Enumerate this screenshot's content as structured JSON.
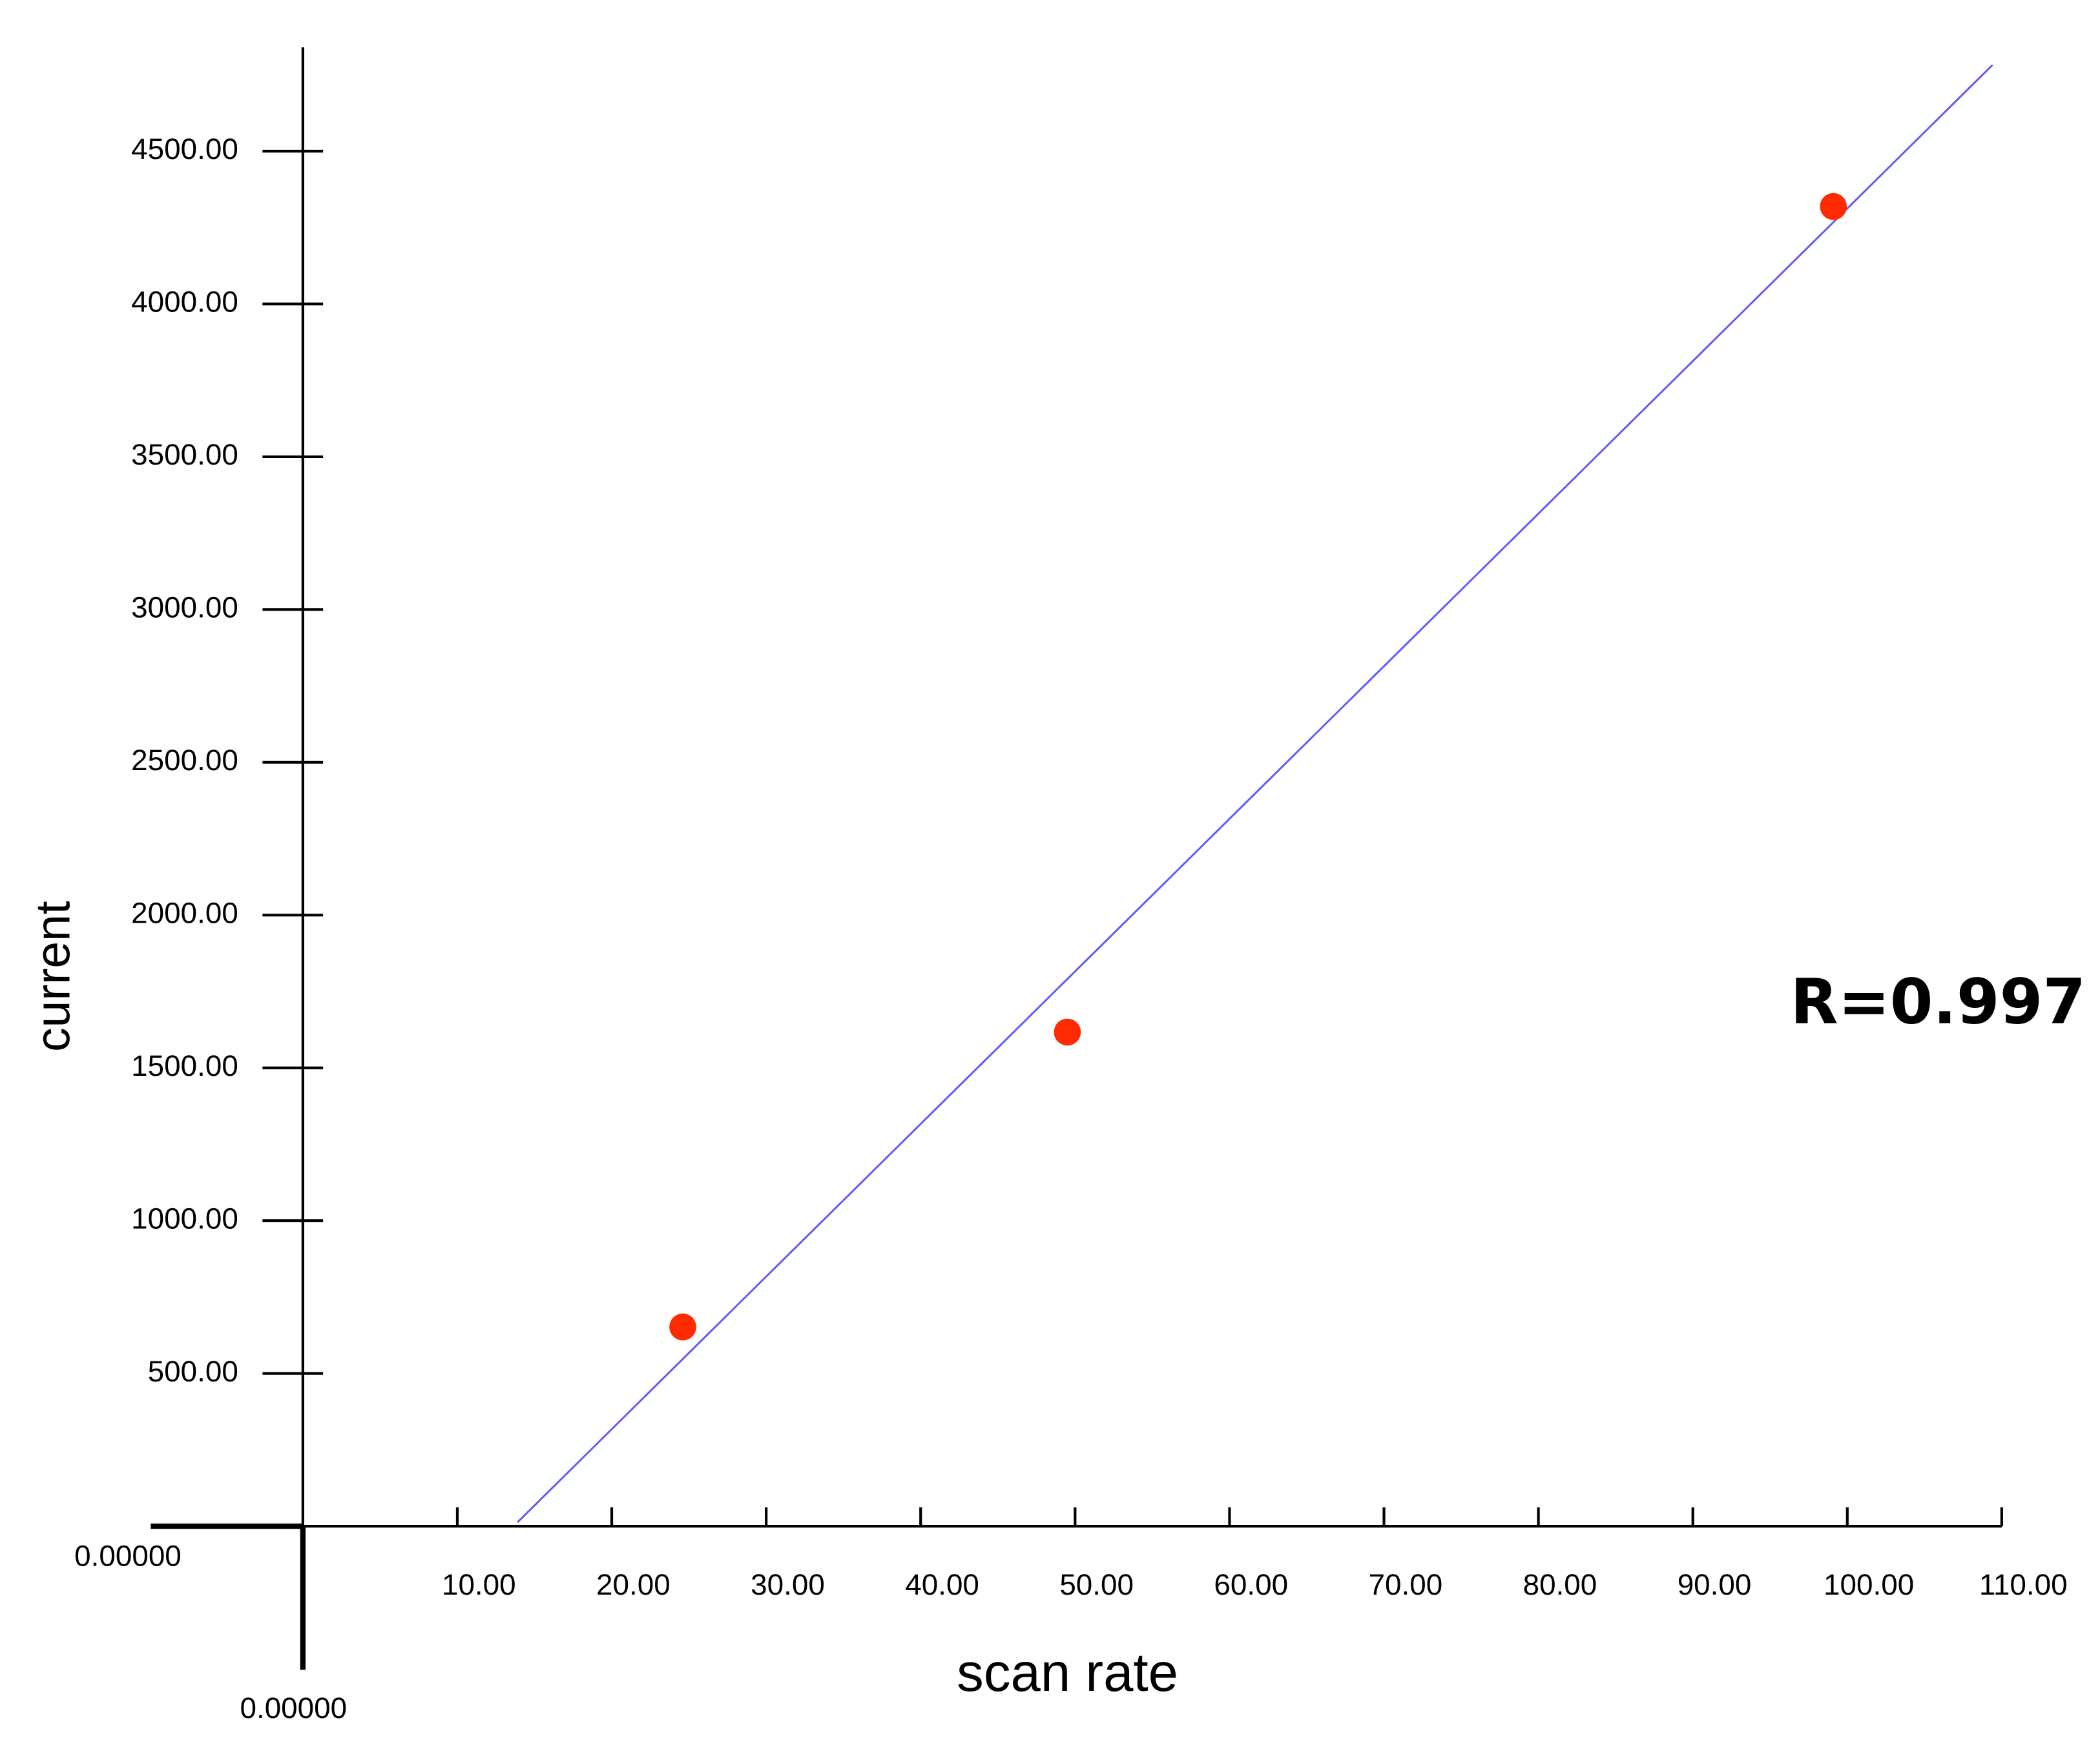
{
  "chart_data": {
    "type": "scatter",
    "x_label": "scan rate",
    "y_label": "current",
    "annotation": "R=0.997",
    "x_origin_label": "0.00000",
    "y_origin_label": "0.00000",
    "x": [
      24.6,
      49.5,
      99.1
    ],
    "values": [
      652,
      1617,
      4319
    ],
    "color": "#ff2a00",
    "fit_line": {
      "x": [
        13.9,
        109.4
      ],
      "y": [
        13,
        4782
      ],
      "color": "#5a5aff"
    },
    "xlim": [
      -9.5,
      110
    ],
    "ylim": [
      -470,
      4840
    ],
    "xticks": [
      {
        "value": 10,
        "label": "10.00"
      },
      {
        "value": 20,
        "label": "20.00"
      },
      {
        "value": 30,
        "label": "30.00"
      },
      {
        "value": 40,
        "label": "40.00"
      },
      {
        "value": 50,
        "label": "50.00"
      },
      {
        "value": 60,
        "label": "60.00"
      },
      {
        "value": 70,
        "label": "70.00"
      },
      {
        "value": 80,
        "label": "80.00"
      },
      {
        "value": 90,
        "label": "90.00"
      },
      {
        "value": 100,
        "label": "100.00"
      },
      {
        "value": 110,
        "label": "110.00"
      }
    ],
    "yticks": [
      {
        "value": 500,
        "label": "500.00"
      },
      {
        "value": 1000,
        "label": "1000.00"
      },
      {
        "value": 1500,
        "label": "1500.00"
      },
      {
        "value": 2000,
        "label": "2000.00"
      },
      {
        "value": 2500,
        "label": "2500.00"
      },
      {
        "value": 3000,
        "label": "3000.00"
      },
      {
        "value": 3500,
        "label": "3500.00"
      },
      {
        "value": 4000,
        "label": "4000.00"
      },
      {
        "value": 4500,
        "label": "4500.00"
      }
    ]
  }
}
